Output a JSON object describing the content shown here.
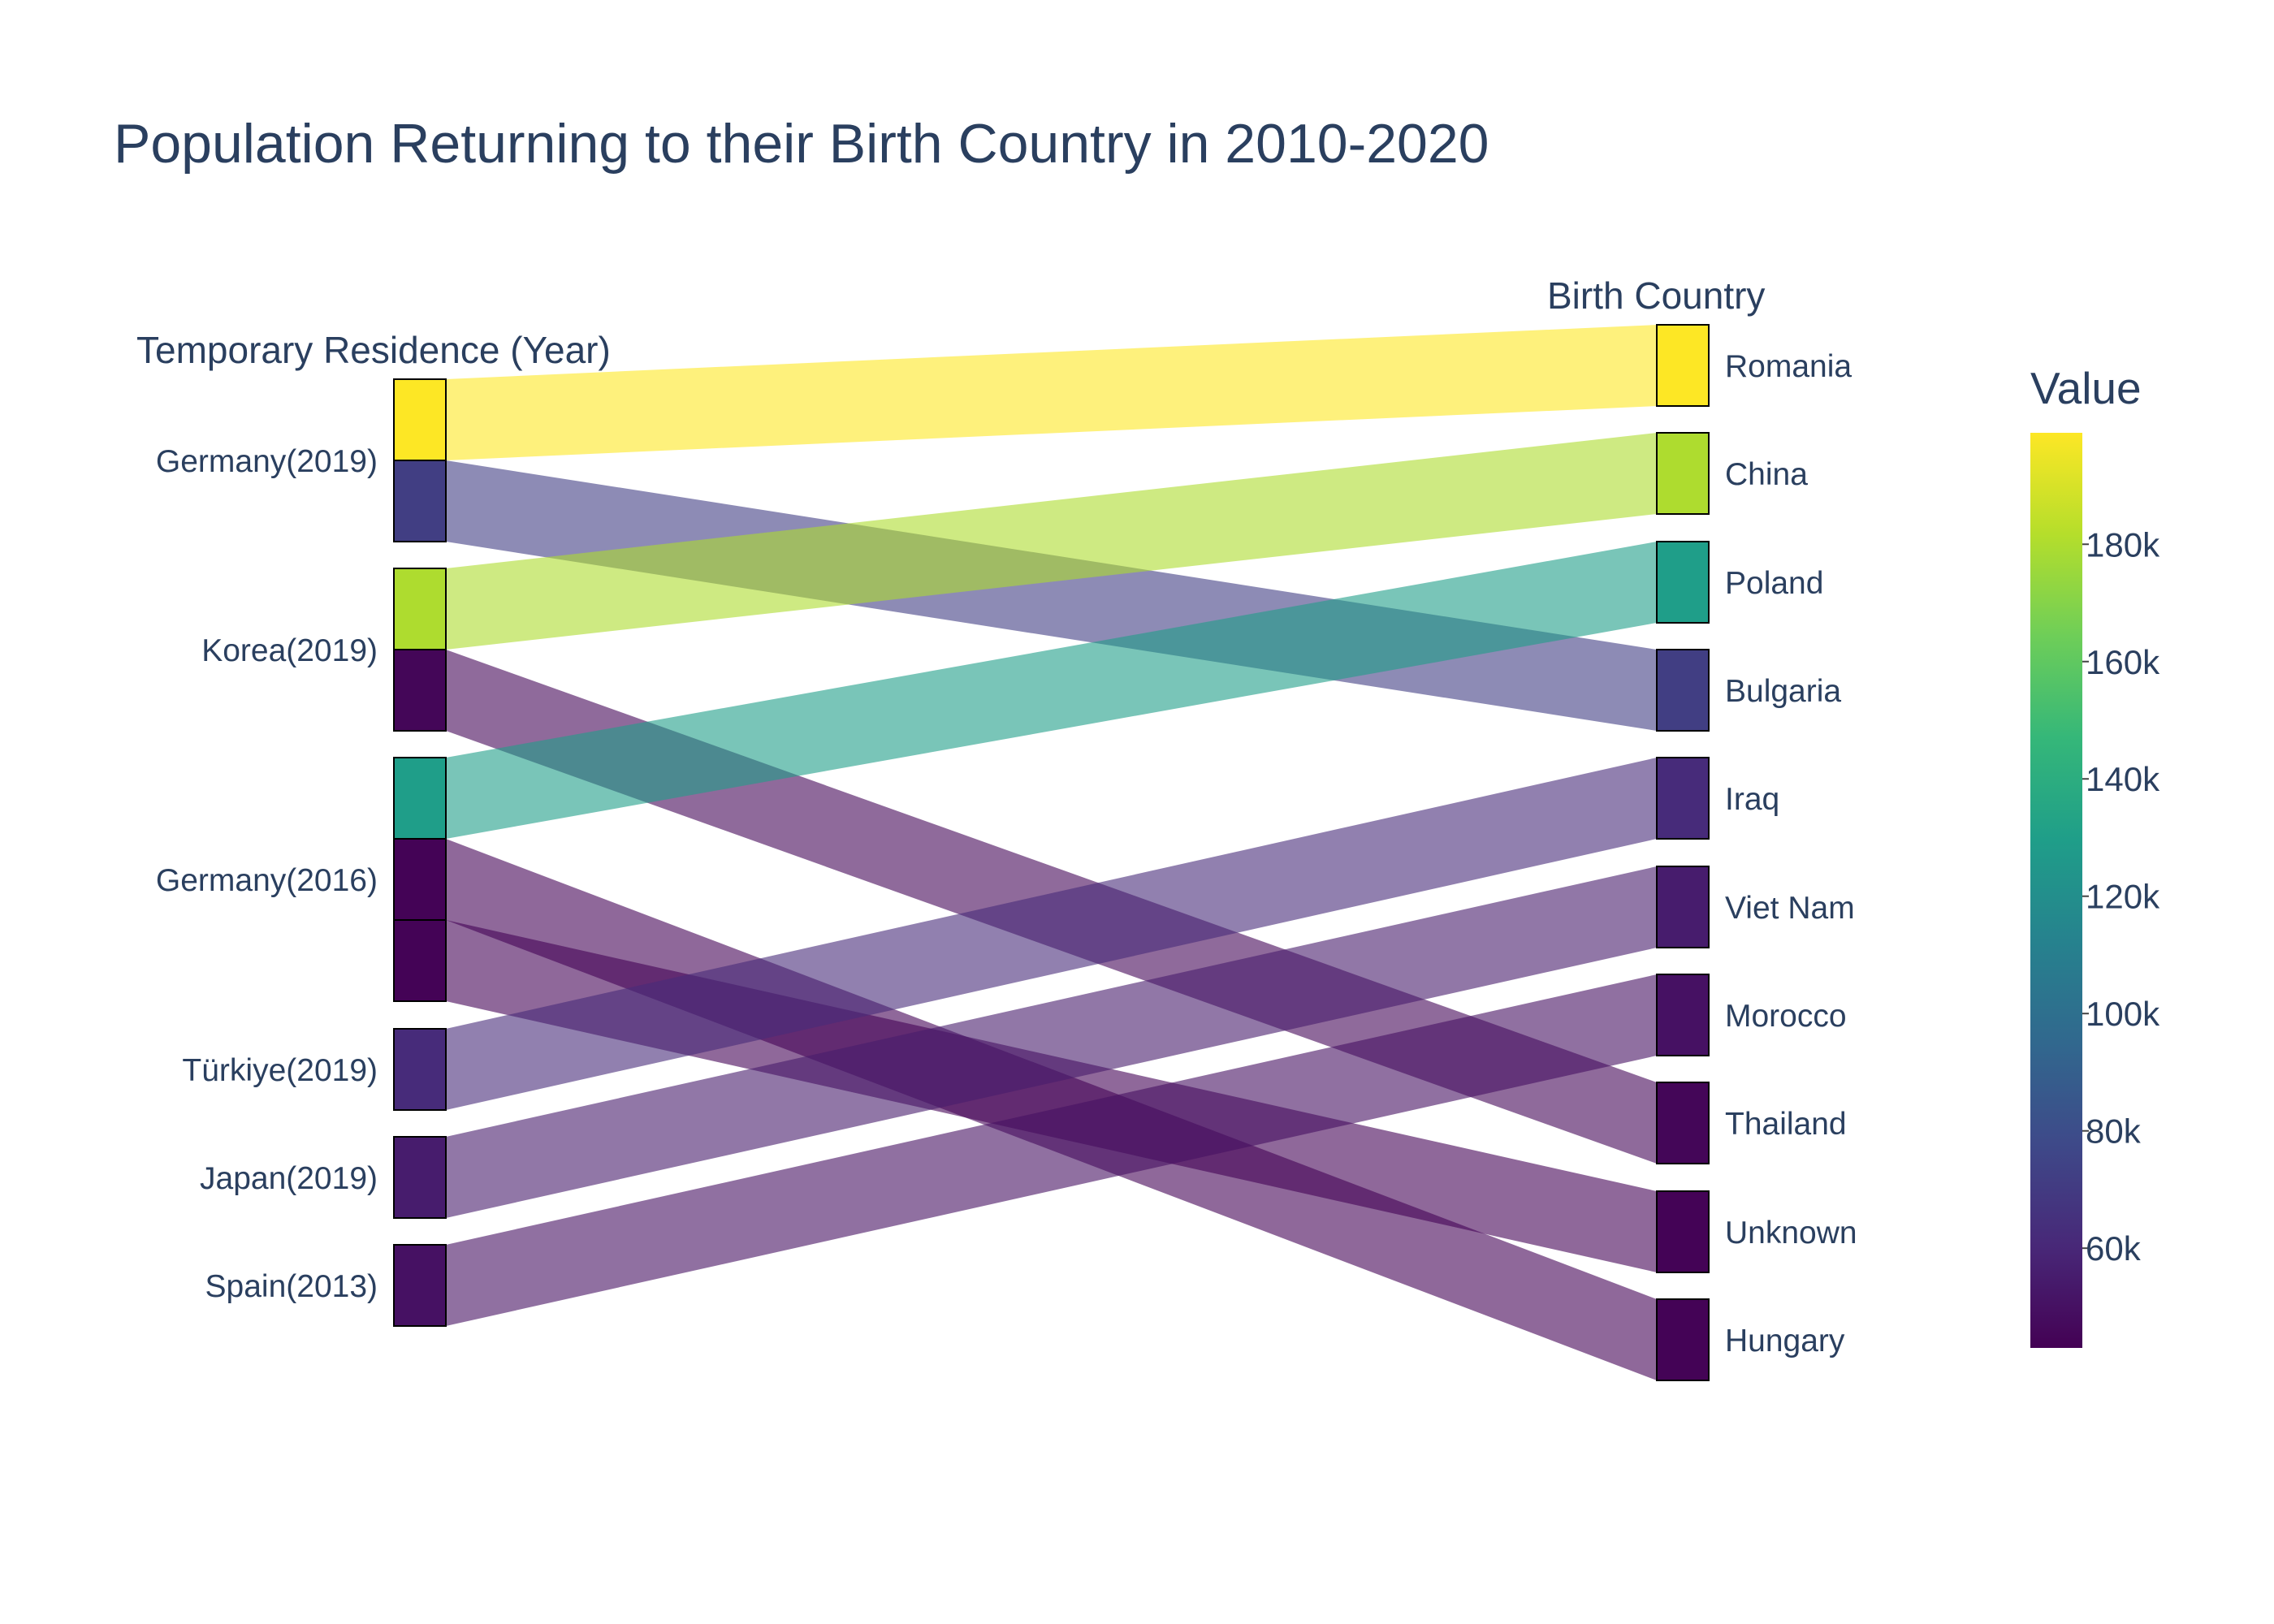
{
  "chart_data": {
    "type": "sankey",
    "title": "Population Returning to their Birth Country in 2010-2020",
    "source_axis_title": "Temporary Residence (Year)",
    "target_axis_title": "Birth Country",
    "colorbar_title": "Value",
    "colorscale": "Viridis",
    "colorbar_range": [
      43000,
      199000
    ],
    "colorbar_ticks": [
      "60k",
      "80k",
      "100k",
      "120k",
      "140k",
      "160k",
      "180k"
    ],
    "colorbar_tick_values": [
      60000,
      80000,
      100000,
      120000,
      140000,
      160000,
      180000
    ],
    "sources": [
      "Germany(2019)",
      "Korea(2019)",
      "Germany(2016)",
      "Türkiye(2019)",
      "Japan(2019)",
      "Spain(2013)"
    ],
    "targets": [
      "Romania",
      "China",
      "Poland",
      "Bulgaria",
      "Iraq",
      "Viet Nam",
      "Morocco",
      "Thailand",
      "Unknown",
      "Hungary"
    ],
    "links": [
      {
        "source": "Germany(2019)",
        "target": "Romania",
        "value": 199000
      },
      {
        "source": "Germany(2019)",
        "target": "Bulgaria",
        "value": 72000
      },
      {
        "source": "Korea(2019)",
        "target": "China",
        "value": 180000
      },
      {
        "source": "Korea(2019)",
        "target": "Thailand",
        "value": 45000
      },
      {
        "source": "Germany(2016)",
        "target": "Poland",
        "value": 130000
      },
      {
        "source": "Germany(2016)",
        "target": "Hungary",
        "value": 44000
      },
      {
        "source": "Germany(2016)",
        "target": "Unknown",
        "value": 44000
      },
      {
        "source": "Türkiye(2019)",
        "target": "Iraq",
        "value": 62000
      },
      {
        "source": "Japan(2019)",
        "target": "Viet Nam",
        "value": 55000
      },
      {
        "source": "Spain(2013)",
        "target": "Morocco",
        "value": 50000
      }
    ]
  }
}
